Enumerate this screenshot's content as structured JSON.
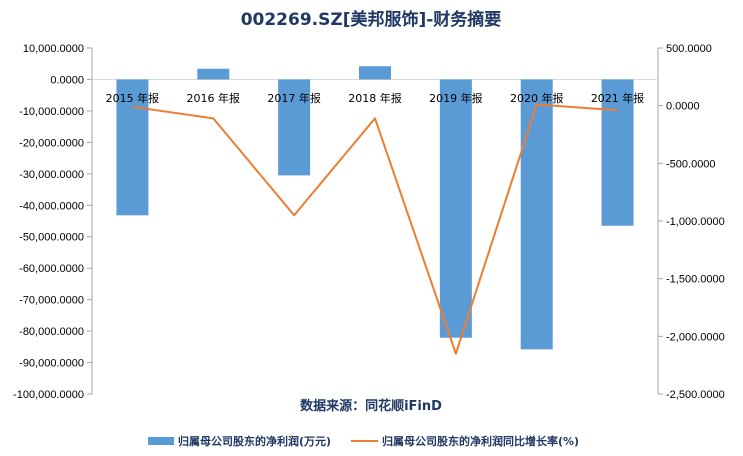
{
  "colors": {
    "bar": "#5B9BD5",
    "line": "#ED7D31",
    "title": "#1F3864",
    "axis": "#A6A6A6",
    "grid": "#D9D9D9"
  },
  "chart_data": {
    "type": "bar",
    "title": "002269.SZ[美邦服饰]-财务摘要",
    "source": "数据来源：同花顺iFinD",
    "categories": [
      "2015 年报",
      "2016 年报",
      "2017 年报",
      "2018 年报",
      "2019 年报",
      "2020 年报",
      "2021 年报"
    ],
    "series": [
      {
        "name": "归属母公司股东的净利润(万元)",
        "type": "bar",
        "axis": "left",
        "values": [
          -43200,
          3400,
          -30500,
          4200,
          -82100,
          -85800,
          -46500
        ]
      },
      {
        "name": "归属母公司股东的净利润同比增长率(%)",
        "type": "line",
        "axis": "right",
        "values": [
          -10,
          -110,
          -950,
          -110,
          -2150,
          10,
          -40
        ]
      }
    ],
    "y_left": {
      "lim": [
        -100000,
        10000
      ],
      "ticks": [
        10000,
        0,
        -10000,
        -20000,
        -30000,
        -40000,
        -50000,
        -60000,
        -70000,
        -80000,
        -90000,
        -100000
      ],
      "tick_labels": [
        "10,000.0000",
        "0.0000",
        "-10,000.0000",
        "-20,000.0000",
        "-30,000.0000",
        "-40,000.0000",
        "-50,000.0000",
        "-60,000.0000",
        "-70,000.0000",
        "-80,000.0000",
        "-90,000.0000",
        "-100,000.0000"
      ]
    },
    "y_right": {
      "lim": [
        -2500,
        500
      ],
      "ticks": [
        500,
        0,
        -500,
        -1000,
        -1500,
        -2000,
        -2500
      ],
      "tick_labels": [
        "500.0000",
        "0.0000",
        "-500.0000",
        "-1,000.0000",
        "-1,500.0000",
        "-2,000.0000",
        "-2,500.0000"
      ]
    },
    "grid": false,
    "legend_position": "bottom"
  }
}
